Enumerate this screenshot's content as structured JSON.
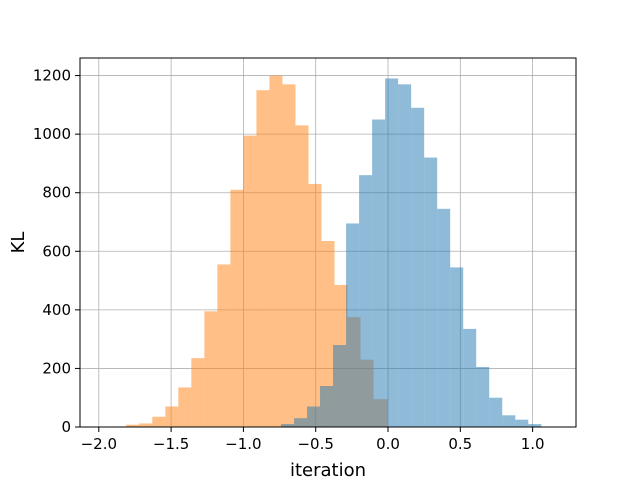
{
  "chart_data": {
    "type": "bar",
    "title": "",
    "xlabel": "iteration",
    "ylabel": "KL",
    "xlim": [
      -2.13,
      1.3
    ],
    "ylim": [
      0,
      1260
    ],
    "x_ticks": [
      -2.0,
      -1.5,
      -1.0,
      -0.5,
      0.0,
      0.5,
      1.0
    ],
    "x_tick_labels": [
      "−2.0",
      "−1.5",
      "−1.0",
      "−0.5",
      "0.0",
      "0.5",
      "1.0"
    ],
    "y_ticks": [
      0,
      200,
      400,
      600,
      800,
      1000,
      1200
    ],
    "y_tick_labels": [
      "0",
      "200",
      "400",
      "600",
      "800",
      "1000",
      "1200"
    ],
    "grid": true,
    "series": [
      {
        "color": "#ff7f0e",
        "alpha": 0.5,
        "bin_edges": [
          -1.9,
          -1.81,
          -1.72,
          -1.63,
          -1.54,
          -1.45,
          -1.36,
          -1.27,
          -1.18,
          -1.09,
          -1.0,
          -0.91,
          -0.82,
          -0.73,
          -0.64,
          -0.55,
          -0.46,
          -0.37,
          -0.28,
          -0.19,
          -0.1,
          0.0
        ],
        "counts": [
          2,
          8,
          12,
          35,
          70,
          135,
          235,
          395,
          555,
          810,
          995,
          1150,
          1200,
          1170,
          1030,
          830,
          635,
          485,
          375,
          230,
          95
        ]
      },
      {
        "color": "#1f77b4",
        "alpha": 0.5,
        "bin_edges": [
          -0.74,
          -0.65,
          -0.56,
          -0.47,
          -0.38,
          -0.29,
          -0.2,
          -0.11,
          -0.02,
          0.07,
          0.16,
          0.25,
          0.34,
          0.43,
          0.52,
          0.61,
          0.7,
          0.79,
          0.88,
          0.97,
          1.06
        ],
        "counts": [
          10,
          30,
          70,
          140,
          280,
          695,
          860,
          1050,
          1190,
          1170,
          1090,
          920,
          745,
          545,
          335,
          205,
          100,
          40,
          25,
          10
        ]
      }
    ]
  }
}
